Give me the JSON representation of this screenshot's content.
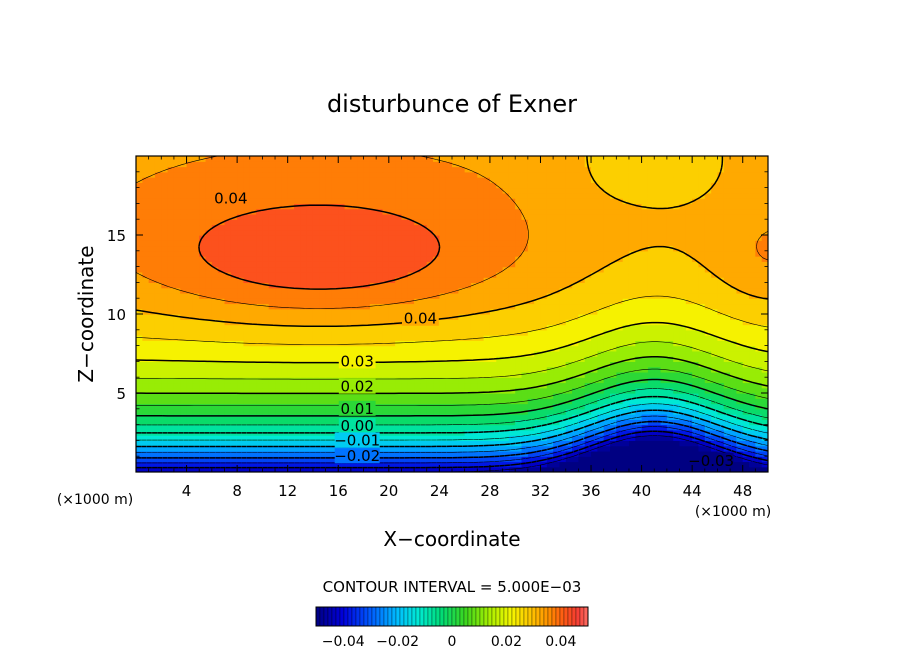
{
  "chart_data": {
    "type": "contour",
    "title": "disturbunce of Exner",
    "xlabel": "X−coordinate",
    "ylabel": "Z−coordinate",
    "x_unit_left": "(×1000 m)",
    "x_unit_right": "(×1000 m)",
    "xlim": [
      0,
      50
    ],
    "ylim": [
      0,
      20
    ],
    "xticks": [
      4,
      8,
      12,
      16,
      20,
      24,
      28,
      32,
      36,
      40,
      44,
      48
    ],
    "xtick_labels": [
      "4",
      "8",
      "12",
      "16",
      "20",
      "24",
      "28",
      "32",
      "36",
      "40",
      "44",
      "48"
    ],
    "yticks": [
      5,
      10,
      15
    ],
    "ytick_labels": [
      "5",
      "10",
      "15"
    ],
    "contour_interval_text": "CONTOUR INTERVAL = 5.000E−03",
    "contour_interval": 0.005,
    "value_range": [
      -0.045,
      0.05
    ],
    "contour_labels": [
      {
        "text": "0.04",
        "x": 7.5,
        "y": 17.3
      },
      {
        "text": "0.04",
        "x": 22.5,
        "y": 9.7
      },
      {
        "text": "0.03",
        "x": 17.5,
        "y": 7.0
      },
      {
        "text": "0.02",
        "x": 17.5,
        "y": 5.4
      },
      {
        "text": "0.01",
        "x": 17.5,
        "y": 4.0
      },
      {
        "text": "0.00",
        "x": 17.5,
        "y": 2.9
      },
      {
        "text": "−0.01",
        "x": 17.5,
        "y": 2.0
      },
      {
        "text": "−0.02",
        "x": 17.5,
        "y": 1.0
      },
      {
        "text": "−0.03",
        "x": 45.5,
        "y": 0.7
      }
    ],
    "colorbar": {
      "min": -0.05,
      "max": 0.05,
      "tick_labels": [
        "−0.04",
        "−0.02",
        "0",
        "0.02",
        "0.04"
      ],
      "tick_values": [
        -0.04,
        -0.02,
        0,
        0.02,
        0.04
      ]
    }
  }
}
